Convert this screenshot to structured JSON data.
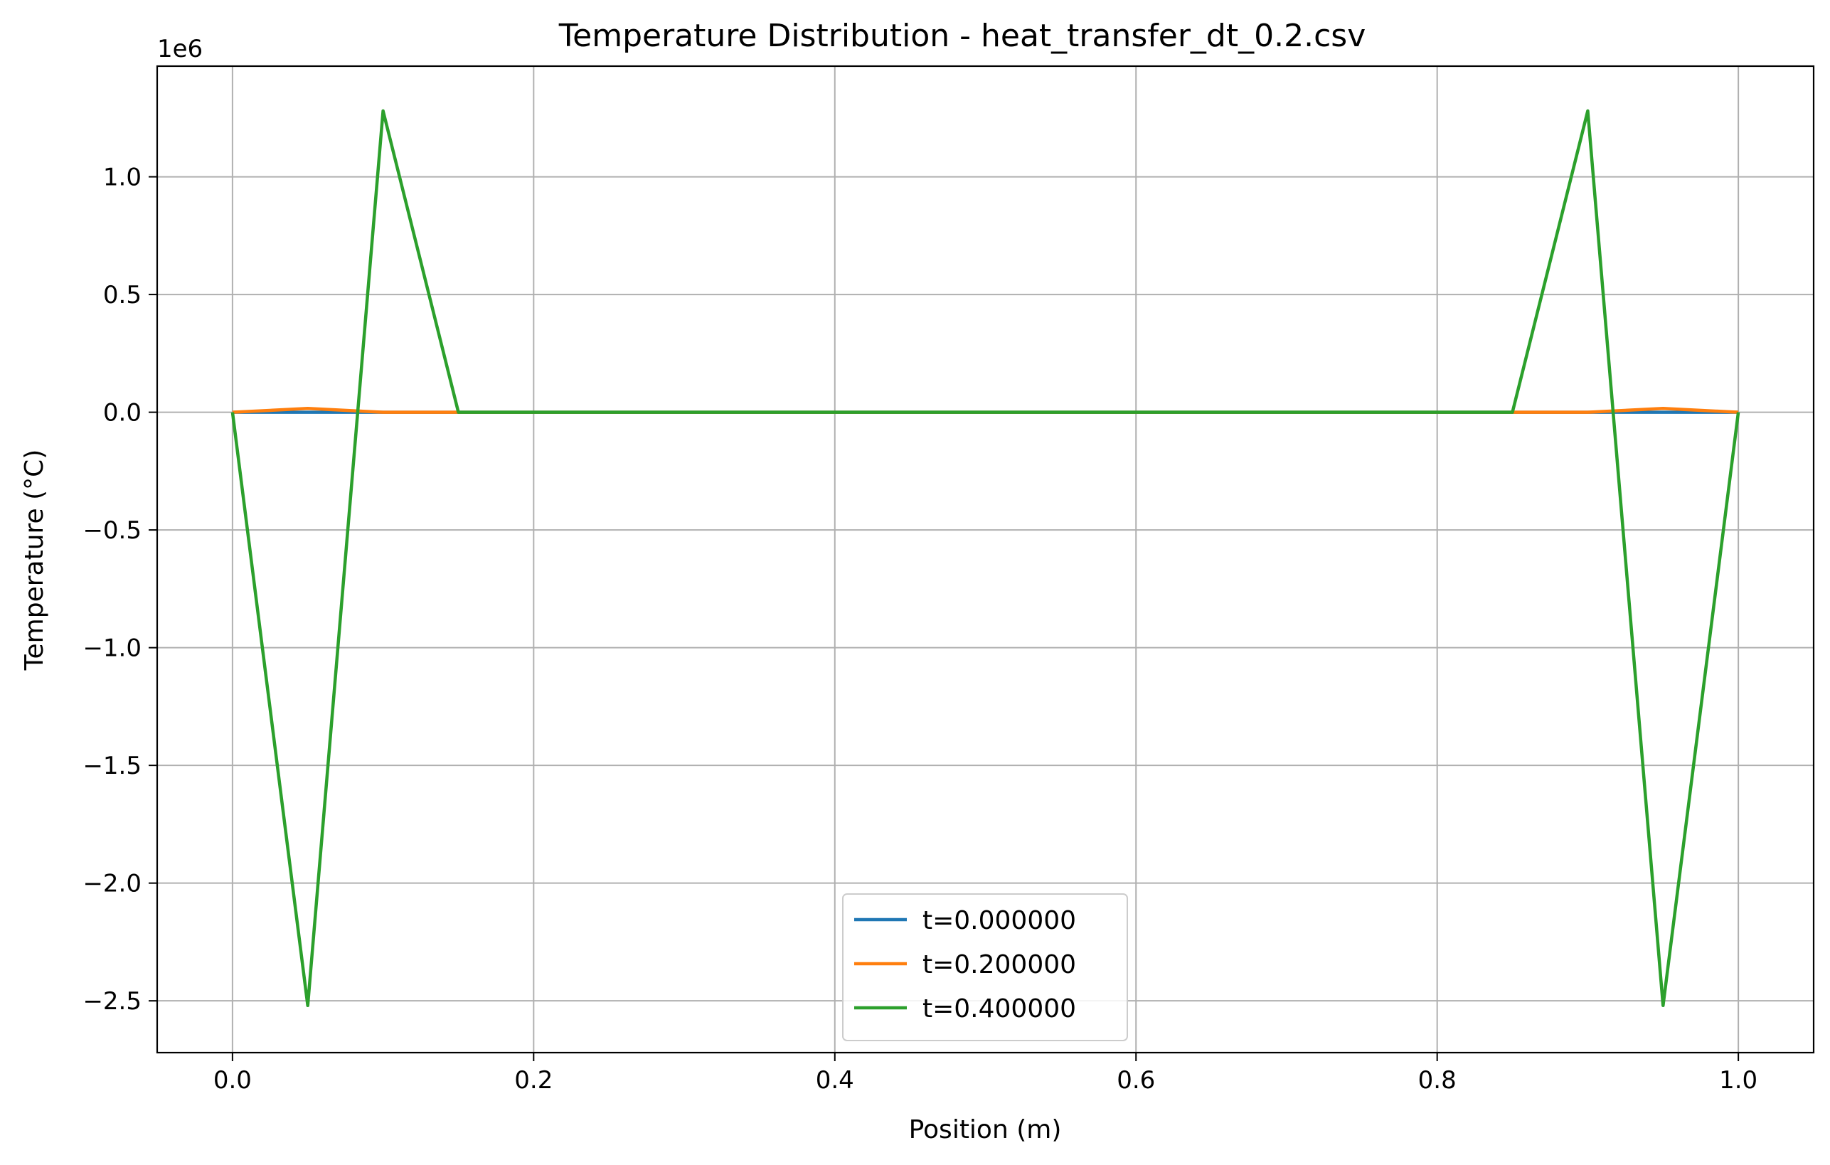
{
  "chart_data": {
    "type": "line",
    "title": "Temperature Distribution - heat_transfer_dt_0.2.csv",
    "xlabel": "Position (m)",
    "ylabel": "Temperature (°C)",
    "y_offset_label": "1e6",
    "xlim": [
      -0.05,
      1.05
    ],
    "ylim": [
      -2.72,
      1.47
    ],
    "y_scale": "1e6",
    "grid": true,
    "legend_position": "lower center",
    "x_ticks": [
      "0.0",
      "0.2",
      "0.4",
      "0.6",
      "0.8",
      "1.0"
    ],
    "x_tick_values": [
      0.0,
      0.2,
      0.4,
      0.6,
      0.8,
      1.0
    ],
    "y_ticks": [
      "1.0",
      "0.5",
      "0.0",
      "−0.5",
      "−1.0",
      "−1.5",
      "−2.0",
      "−2.5"
    ],
    "y_tick_values": [
      1.0,
      0.5,
      0.0,
      -0.5,
      -1.0,
      -1.5,
      -2.0,
      -2.5
    ],
    "x": [
      0.0,
      0.05,
      0.1,
      0.15,
      0.2,
      0.25,
      0.3,
      0.35,
      0.4,
      0.45,
      0.5,
      0.55,
      0.6,
      0.65,
      0.7,
      0.75,
      0.8,
      0.85,
      0.9,
      0.95,
      1.0
    ],
    "series": [
      {
        "name": "t=0.000000",
        "color": "#1f77b4",
        "values": [
          0,
          0,
          0,
          0,
          0,
          0,
          0,
          0,
          0,
          0,
          0,
          0,
          0,
          0,
          0,
          0,
          0,
          0,
          0,
          0,
          0
        ]
      },
      {
        "name": "t=0.200000",
        "color": "#ff7f0e",
        "values": [
          0,
          0.016,
          0,
          0,
          0,
          0,
          0,
          0,
          0,
          0,
          0,
          0,
          0,
          0,
          0,
          0,
          0,
          0,
          0,
          0.016,
          0
        ]
      },
      {
        "name": "t=0.400000",
        "color": "#2ca02c",
        "values": [
          0,
          -2.52,
          1.28,
          0,
          0,
          0,
          0,
          0,
          0,
          0,
          0,
          0,
          0,
          0,
          0,
          0,
          0,
          0,
          1.28,
          -2.52,
          0
        ]
      }
    ]
  }
}
